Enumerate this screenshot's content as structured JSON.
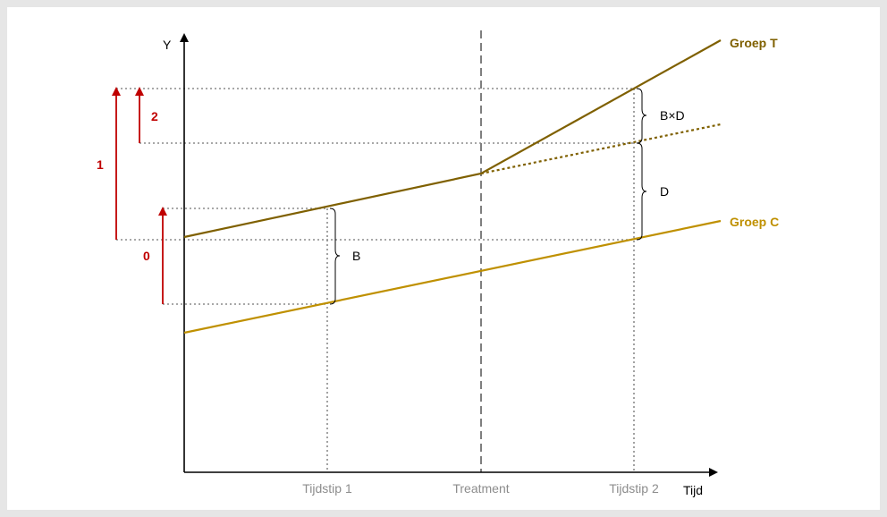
{
  "diagram": {
    "y_axis_label": "Y",
    "x_axis_label": "Tijd",
    "x_ticks": {
      "time1": "Tijdstip 1",
      "treatment": "Treatment",
      "time2": "Tijdstip 2"
    },
    "groups": {
      "treatment": {
        "label": "Groep T",
        "color": "#7f6000"
      },
      "control": {
        "label": "Groep C",
        "color": "#bf9000"
      }
    },
    "effects": {
      "b": "B",
      "d": "D",
      "bxd": "B×D"
    },
    "arrows": {
      "zero": "0",
      "one": "1",
      "two": "2",
      "color": "#c00000"
    }
  }
}
